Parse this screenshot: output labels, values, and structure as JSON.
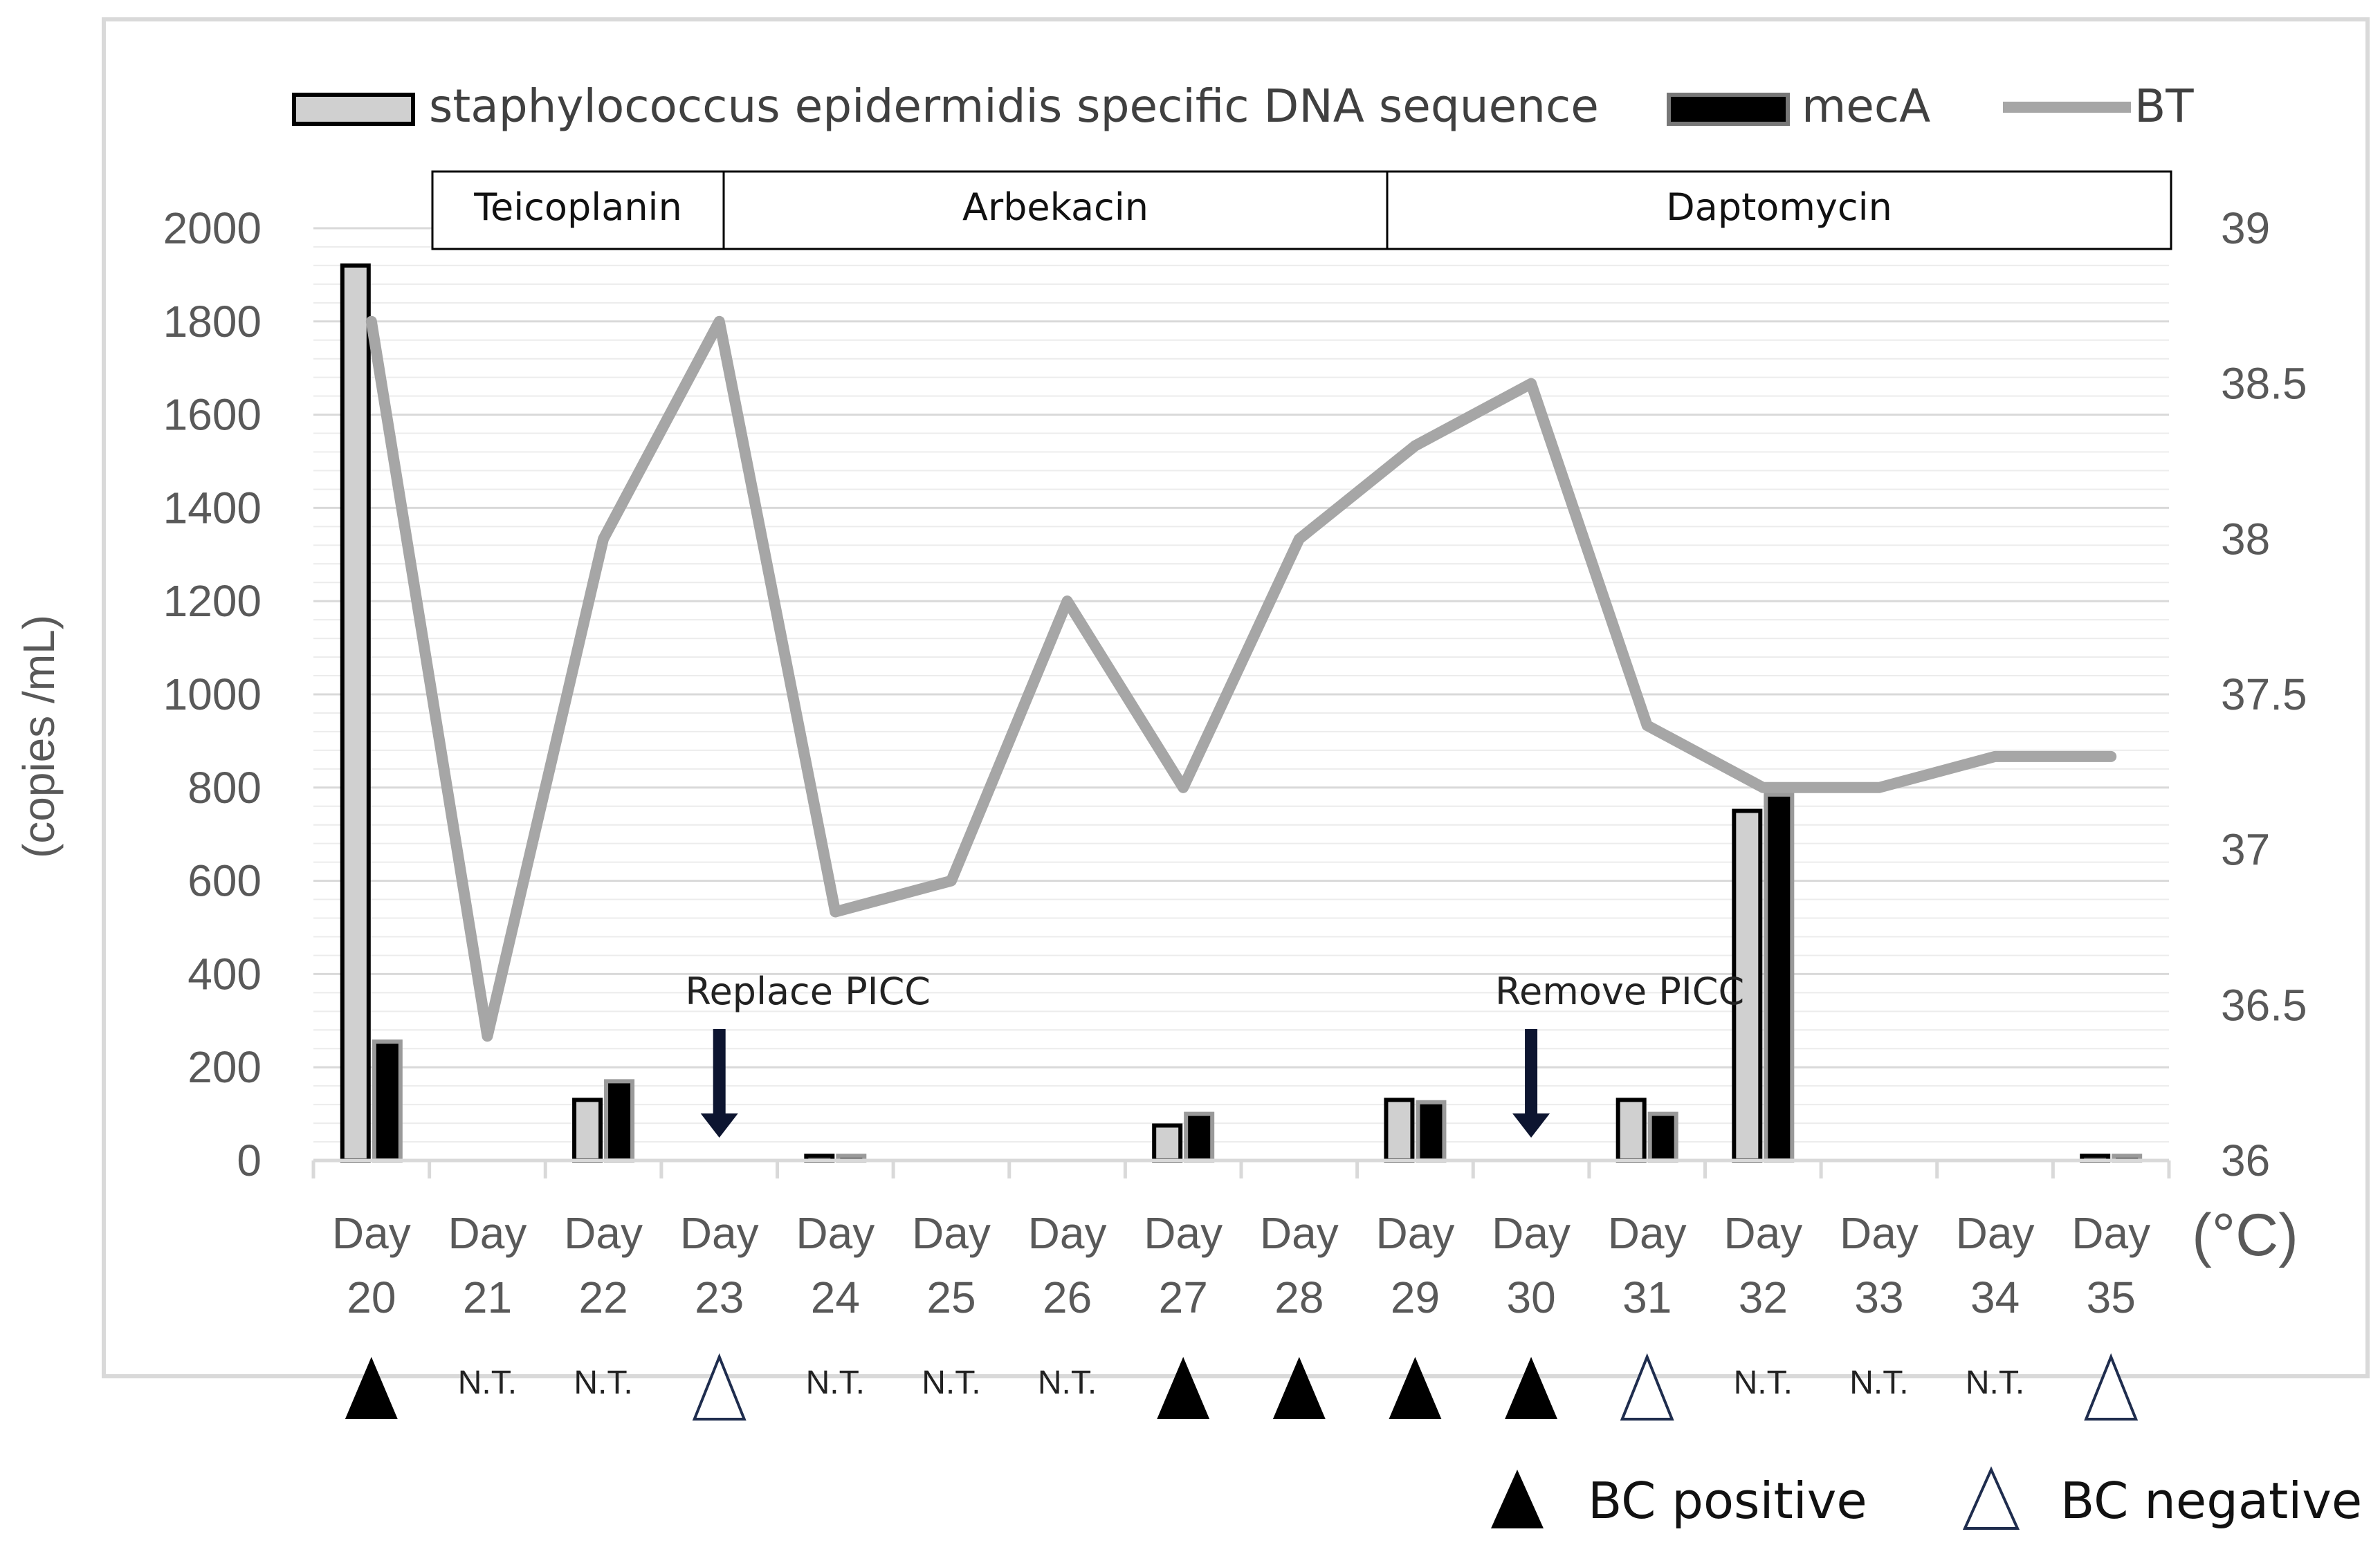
{
  "chart_data": {
    "type": "bar",
    "categories": [
      "Day 20",
      "Day 21",
      "Day 22",
      "Day 23",
      "Day 24",
      "Day 25",
      "Day 26",
      "Day 27",
      "Day 28",
      "Day 29",
      "Day 30",
      "Day 31",
      "Day 32",
      "Day 33",
      "Day 34",
      "Day 35"
    ],
    "series": [
      {
        "name": "staphylococcus epidermidis specific DNA sequence",
        "type": "bar",
        "axis": "left",
        "color": "#d0d0d0",
        "values": [
          1920,
          0,
          130,
          0,
          10,
          0,
          0,
          75,
          0,
          130,
          0,
          130,
          750,
          0,
          0,
          10
        ]
      },
      {
        "name": "mecA",
        "type": "bar",
        "axis": "left",
        "color": "#000000",
        "values": [
          255,
          0,
          170,
          0,
          10,
          0,
          0,
          100,
          0,
          125,
          0,
          100,
          785,
          0,
          0,
          10
        ]
      },
      {
        "name": "BT",
        "type": "line",
        "axis": "right",
        "color": "#a6a6a6",
        "values": [
          38.7,
          36.4,
          38.0,
          38.7,
          36.8,
          36.9,
          37.8,
          37.2,
          38.0,
          38.3,
          38.5,
          37.4,
          37.2,
          37.2,
          37.3,
          37.3
        ]
      }
    ],
    "ylabel": "(copies /mL)",
    "ylim": [
      0,
      2000
    ],
    "yticks": [
      0,
      200,
      400,
      600,
      800,
      1000,
      1200,
      1400,
      1600,
      1800,
      2000
    ],
    "y2label": "(°C)",
    "y2lim": [
      36,
      39
    ],
    "y2ticks": [
      "36",
      "36.5",
      "37",
      "37.5",
      "38",
      "38.5",
      "39"
    ],
    "grid": true,
    "legend": "top",
    "treatments": [
      {
        "label": "Teicoplanin",
        "start": "Day 21",
        "end": "Day 23"
      },
      {
        "label": "Arbekacin",
        "start": "Day 23",
        "end": "Day 29"
      },
      {
        "label": "Daptomycin",
        "start": "Day 30",
        "end": "Day 35"
      }
    ],
    "annotations": [
      {
        "label": "Replace PICC",
        "day": "Day 23"
      },
      {
        "label": "Remove PICC",
        "day": "Day 30"
      }
    ],
    "blood_culture": [
      "positive",
      "N.T.",
      "N.T.",
      "negative",
      "N.T.",
      "N.T.",
      "N.T.",
      "positive",
      "positive",
      "positive",
      "positive",
      "negative",
      "N.T.",
      "N.T.",
      "N.T.",
      "negative"
    ],
    "bc_legend": {
      "positive": "BC positive",
      "negative": "BC negative"
    }
  },
  "colors": {
    "bar1": "#d0d0d0",
    "bar2": "#000000",
    "line": "#a6a6a6",
    "grid": "#d9d9d9"
  }
}
